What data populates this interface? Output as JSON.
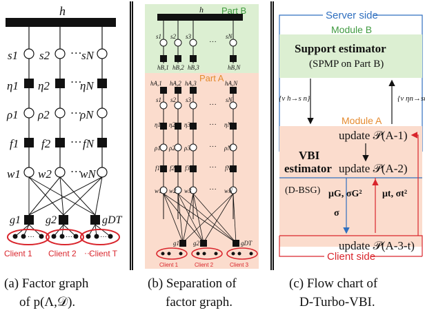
{
  "panel_a": {
    "top_factor": "h",
    "support_nodes": [
      "s1",
      "s2",
      "…",
      "sN"
    ],
    "eta_nodes": [
      "η1",
      "η2",
      "…",
      "ηN"
    ],
    "rho_nodes": [
      "ρ1",
      "ρ2",
      "…",
      "ρN"
    ],
    "f_nodes": [
      "f1",
      "f2",
      "…",
      "fN"
    ],
    "w_nodes": [
      "w1",
      "w2",
      "…",
      "wN"
    ],
    "g_nodes": [
      "g1",
      "g2",
      "gDT"
    ],
    "clients": [
      "Client 1",
      "Client 2",
      "Client T"
    ],
    "client_dots": "···",
    "caption_line1": "(a) Factor graph",
    "caption_line2": "of  p(Λ,𝒟)."
  },
  "panel_b": {
    "top_factor": "h",
    "part_b_label": "Part B",
    "part_a_label": "Part A",
    "hb_labels": [
      "hB,1",
      "hB,2",
      "hB,3",
      "hB,N"
    ],
    "ha_labels": [
      "hA,1",
      "hA,2",
      "hA,3",
      "hA,N"
    ],
    "s_labels": [
      "s1",
      "s2",
      "s3",
      "sN"
    ],
    "eta_labels": [
      "η1",
      "η2",
      "η3",
      "ηN"
    ],
    "rho_labels": [
      "ρ1",
      "ρ2",
      "ρ3",
      "ρN"
    ],
    "f_labels": [
      "f1",
      "f2",
      "f3",
      "fN"
    ],
    "w_labels": [
      "w1",
      "w2",
      "w3",
      "wN"
    ],
    "g_labels": [
      "g1",
      "g2",
      "gDT"
    ],
    "clients": [
      "Client 1",
      "Client 2",
      "Client 3"
    ],
    "caption_line1": "(b) Separation of",
    "caption_line2": "factor graph."
  },
  "panel_c": {
    "server_side": "Server side",
    "module_b": "Module B",
    "support_estimator": "Support estimator",
    "spmp": "(SPMP on Part B)",
    "msg_down": "{v h→s n}",
    "msg_up": "{v ηn→sn}",
    "module_a": "Module A",
    "update_a1": "update 𝒫(A-1)",
    "vbi_line1": "VBI",
    "vbi_line2": "estimator",
    "update_a2": "update 𝒫(A-2)",
    "dbsg": "(D-BSG)",
    "mu_g": "μG, σG²",
    "mu_t": "μt, σt²",
    "sigma": "σ",
    "update_a3": "update 𝒫(A-3-t)",
    "client_side": "Client side",
    "caption_line1": "(c) Flow chart of",
    "caption_line2": "D-Turbo-VBI."
  },
  "colors": {
    "part_b_bg": "#dcefd2",
    "part_a_bg": "#fbdccd",
    "module_b_bg": "#dcefd2",
    "module_a_bg": "#fbdccd",
    "server_line": "#2f6fbf",
    "client_line": "#d9252c",
    "module_label_orange": "#e58a2e",
    "module_label_green": "#3f9a3f",
    "support_text": "#2d8a2d",
    "vbi_text": "#c0392b",
    "mu_g_color": "#2f6fbf",
    "mu_t_color": "#d9252c"
  }
}
